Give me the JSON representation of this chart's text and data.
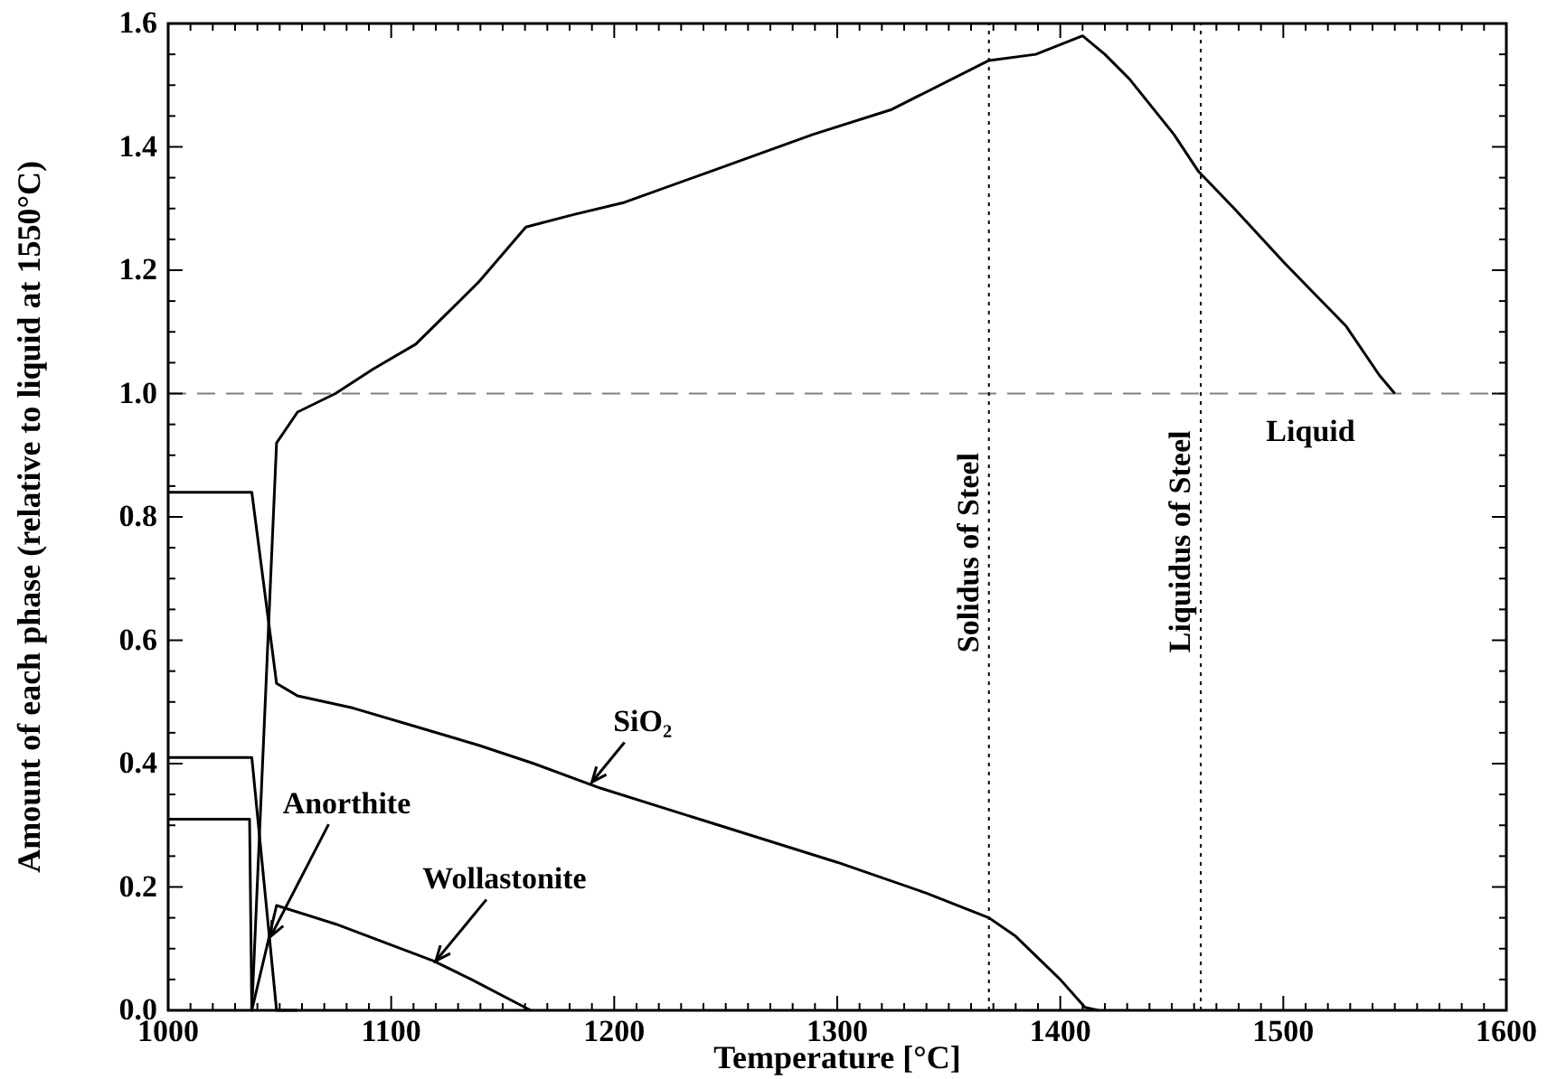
{
  "chart_data": {
    "type": "line",
    "xlabel": "Temperature [°C]",
    "ylabel": "Amount of each phase (relative to liquid at 1550°C)",
    "xlim": [
      1000,
      1600
    ],
    "ylim": [
      0,
      1.6
    ],
    "xticks": [
      1000,
      {
        "value": 1010,
        "label": null
      },
      {
        "value": 1020,
        "label": null
      },
      {
        "value": 1030,
        "label": null
      },
      {
        "value": 1040,
        "label": null
      },
      {
        "value": 1050,
        "label": null
      },
      {
        "value": 1060,
        "label": null
      },
      {
        "value": 1070,
        "label": null
      },
      {
        "value": 1080,
        "label": null
      },
      {
        "value": 1090,
        "label": null
      },
      1100,
      {
        "value": 1110,
        "label": null
      },
      {
        "value": 1120,
        "label": null
      },
      {
        "value": 1130,
        "label": null
      },
      {
        "value": 1140,
        "label": null
      },
      {
        "value": 1150,
        "label": null
      },
      {
        "value": 1160,
        "label": null
      },
      {
        "value": 1170,
        "label": null
      },
      {
        "value": 1180,
        "label": null
      },
      {
        "value": 1190,
        "label": null
      },
      1200,
      {
        "value": 1210,
        "label": null
      },
      {
        "value": 1220,
        "label": null
      },
      {
        "value": 1230,
        "label": null
      },
      {
        "value": 1240,
        "label": null
      },
      {
        "value": 1250,
        "label": null
      },
      {
        "value": 1260,
        "label": null
      },
      {
        "value": 1270,
        "label": null
      },
      {
        "value": 1280,
        "label": null
      },
      {
        "value": 1290,
        "label": null
      },
      1300,
      {
        "value": 1310,
        "label": null
      },
      {
        "value": 1320,
        "label": null
      },
      {
        "value": 1330,
        "label": null
      },
      {
        "value": 1340,
        "label": null
      },
      {
        "value": 1350,
        "label": null
      },
      {
        "value": 1360,
        "label": null
      },
      {
        "value": 1370,
        "label": null
      },
      {
        "value": 1380,
        "label": null
      },
      {
        "value": 1390,
        "label": null
      },
      1400,
      {
        "value": 1410,
        "label": null
      },
      {
        "value": 1420,
        "label": null
      },
      {
        "value": 1430,
        "label": null
      },
      {
        "value": 1440,
        "label": null
      },
      {
        "value": 1450,
        "label": null
      },
      {
        "value": 1460,
        "label": null
      },
      {
        "value": 1470,
        "label": null
      },
      {
        "value": 1480,
        "label": null
      },
      {
        "value": 1490,
        "label": null
      },
      1500,
      {
        "value": 1510,
        "label": null
      },
      {
        "value": 1520,
        "label": null
      },
      {
        "value": 1530,
        "label": null
      },
      {
        "value": 1540,
        "label": null
      },
      {
        "value": 1550,
        "label": null
      },
      {
        "value": 1560,
        "label": null
      },
      {
        "value": 1570,
        "label": null
      },
      {
        "value": 1580,
        "label": null
      },
      {
        "value": 1590,
        "label": null
      },
      1600
    ],
    "yticks": [
      {
        "value": 0,
        "label": "0.0"
      },
      {
        "value": 0.05,
        "label": null
      },
      {
        "value": 0.1,
        "label": null
      },
      {
        "value": 0.15,
        "label": null
      },
      {
        "value": 0.2,
        "label": "0.2"
      },
      {
        "value": 0.25,
        "label": null
      },
      {
        "value": 0.3,
        "label": null
      },
      {
        "value": 0.35,
        "label": null
      },
      {
        "value": 0.4,
        "label": "0.4"
      },
      {
        "value": 0.45,
        "label": null
      },
      {
        "value": 0.5,
        "label": null
      },
      {
        "value": 0.55,
        "label": null
      },
      {
        "value": 0.6,
        "label": "0.6"
      },
      {
        "value": 0.65,
        "label": null
      },
      {
        "value": 0.7,
        "label": null
      },
      {
        "value": 0.75,
        "label": null
      },
      {
        "value": 0.8,
        "label": "0.8"
      },
      {
        "value": 0.85,
        "label": null
      },
      {
        "value": 0.9,
        "label": null
      },
      {
        "value": 0.95,
        "label": null
      },
      {
        "value": 1.0,
        "label": "1.0"
      },
      {
        "value": 1.05,
        "label": null
      },
      {
        "value": 1.1,
        "label": null
      },
      {
        "value": 1.15,
        "label": null
      },
      {
        "value": 1.2,
        "label": "1.2"
      },
      {
        "value": 1.25,
        "label": null
      },
      {
        "value": 1.3,
        "label": null
      },
      {
        "value": 1.35,
        "label": null
      },
      {
        "value": 1.4,
        "label": "1.4"
      },
      {
        "value": 1.45,
        "label": null
      },
      {
        "value": 1.5,
        "label": null
      },
      {
        "value": 1.55,
        "label": null
      },
      {
        "value": 1.6,
        "label": "1.6"
      }
    ],
    "grid": false,
    "marker": "none",
    "line_style": "solid",
    "series": [
      {
        "color": "#000000",
        "x": [
          1037.5,
          1048.6,
          1058,
          1075,
          1092,
          1111,
          1139,
          1160.4,
          1181.5,
          1204.6,
          1243,
          1289,
          1324,
          1368,
          1389,
          1410,
          1420,
          1431,
          1451,
          1462,
          1478,
          1501,
          1528,
          1543,
          1550
        ],
        "values": [
          0,
          0.92,
          0.97,
          1.0,
          1.04,
          1.08,
          1.18,
          1.27,
          1.29,
          1.31,
          1.36,
          1.42,
          1.46,
          1.54,
          1.55,
          1.58,
          1.55,
          1.51,
          1.42,
          1.36,
          1.3,
          1.21,
          1.11,
          1.03,
          1.0
        ]
      },
      {
        "color": "#000000",
        "x": [
          1000,
          1037.5,
          1048.6,
          1058,
          1083,
          1111,
          1139,
          1164,
          1194,
          1247,
          1300,
          1340,
          1368,
          1380,
          1400,
          1411,
          1417
        ],
        "values": [
          0.84,
          0.84,
          0.53,
          0.51,
          0.49,
          0.46,
          0.43,
          0.4,
          0.36,
          0.3,
          0.24,
          0.19,
          0.15,
          0.12,
          0.05,
          0.005,
          0
        ]
      },
      {
        "color": "#000000",
        "x": [
          1000,
          1037.5,
          1048.6,
          1058
        ],
        "values": [
          0.41,
          0.41,
          0,
          0
        ]
      },
      {
        "color": "#000000",
        "x": [
          1000,
          1036.5,
          1037.5,
          1048.6,
          1075,
          1097,
          1119,
          1136,
          1162.5
        ],
        "values": [
          0.31,
          0.31,
          0,
          0.17,
          0.14,
          0.11,
          0.08,
          0.05,
          0
        ]
      }
    ],
    "ref_lines": [
      {
        "axis": "y",
        "value": 1.0,
        "color": "#808080",
        "line_style": "dashed"
      },
      {
        "axis": "x",
        "value": 1368,
        "label": "Solidus of Steel",
        "color": "#000000",
        "line_style": "dotted"
      },
      {
        "axis": "x",
        "value": 1463,
        "label": "Liquidus of Steel",
        "color": "#000000",
        "line_style": "dotted"
      }
    ],
    "annotations": [
      {
        "text": "Liquid",
        "x": 1550,
        "y": 1.0
      },
      {
        "text": "SiO₂",
        "x": 1190,
        "y": 0.37
      },
      {
        "text": "Anorthite",
        "x": 1046,
        "y": 0.12
      },
      {
        "text": "Wollastonite",
        "x": 1120,
        "y": 0.08
      }
    ]
  }
}
